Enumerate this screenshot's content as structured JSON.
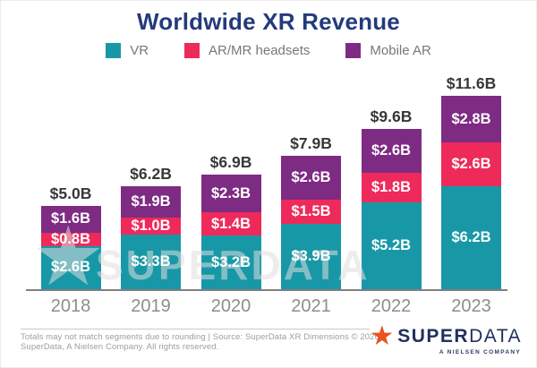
{
  "title": "Worldwide XR Revenue",
  "colors": {
    "vr": "#1898A7",
    "ar_mr": "#EE2A5B",
    "mobile_ar": "#7E2B83",
    "title_navy": "#233B7D",
    "logo_star_orange": "#E85320",
    "logo_navy": "#20305F"
  },
  "legend": {
    "items": [
      {
        "label": "VR",
        "color": "#1898A7"
      },
      {
        "label": "AR/MR headsets",
        "color": "#EE2A5B"
      },
      {
        "label": "Mobile AR",
        "color": "#7E2B83"
      }
    ]
  },
  "chart_data": {
    "type": "bar",
    "stacked": true,
    "title": "Worldwide XR Revenue",
    "unit": "billions USD",
    "categories": [
      "2018",
      "2019",
      "2020",
      "2021",
      "2022",
      "2023"
    ],
    "series": [
      {
        "name": "VR",
        "color": "#1898A7",
        "values": [
          2.6,
          3.3,
          3.2,
          3.9,
          5.2,
          6.2
        ]
      },
      {
        "name": "AR/MR headsets",
        "color": "#EE2A5B",
        "values": [
          0.8,
          1.0,
          1.4,
          1.5,
          1.8,
          2.6
        ]
      },
      {
        "name": "Mobile AR",
        "color": "#7E2B83",
        "values": [
          1.6,
          1.9,
          2.3,
          2.6,
          2.6,
          2.8
        ]
      }
    ],
    "totals": [
      5.0,
      6.2,
      6.9,
      7.9,
      9.6,
      11.6
    ],
    "total_labels": [
      "$5.0B",
      "$6.2B",
      "$6.9B",
      "$7.9B",
      "$9.6B",
      "$11.6B"
    ],
    "value_label_format": "$#.#B",
    "legend_position": "top",
    "grid": false,
    "ylim": [
      0,
      12
    ]
  },
  "watermark": {
    "star_glyph": "★",
    "text": "SUPERDATA"
  },
  "footer": {
    "note_line1": "Totals may not match segments due to rounding | Source: SuperData XR Dimensions © 2020",
    "note_line2": "SuperData, A Nielsen Company. All rights reserved.",
    "logo_star_glyph": "★",
    "logo_super": "SUPER",
    "logo_data": "DATA",
    "logo_tagline": "A NIELSEN COMPANY"
  }
}
